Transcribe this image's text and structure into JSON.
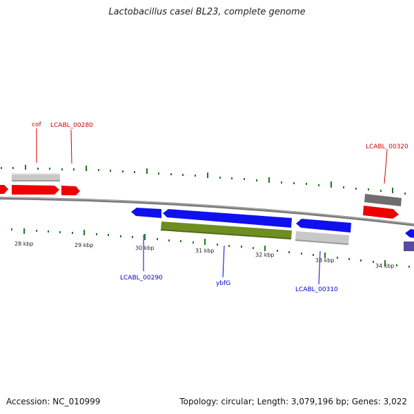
{
  "header": {
    "title": "Lactobacillus casei BL23, complete genome"
  },
  "footer": {
    "accession": "Accession: NC_010999",
    "summary": "Topology: circular; Length: 3,079,196 bp; Genes: 3,022"
  },
  "colors": {
    "backbone": "#808080",
    "tick": "#1a7a1a",
    "forward_label": "#cc0000",
    "reverse_label": "#0000cc"
  },
  "ticks": [
    {
      "label": "28 kbp"
    },
    {
      "label": "29 kbp"
    },
    {
      "label": "30 kbp"
    },
    {
      "label": "31 kbp"
    },
    {
      "label": "32 kbp"
    },
    {
      "label": "33 kbp"
    },
    {
      "label": "34 kbp"
    }
  ],
  "gene_labels": [
    {
      "text": "cof",
      "color": "#cc0000"
    },
    {
      "text": "LCABL_00280",
      "color": "#cc0000"
    },
    {
      "text": "LCABL_00320",
      "color": "#cc0000"
    },
    {
      "text": "LCABL_00290",
      "color": "#0000cc"
    },
    {
      "text": "ybfG",
      "color": "#0000cc"
    },
    {
      "text": "LCABL_00310",
      "color": "#0000cc"
    }
  ]
}
